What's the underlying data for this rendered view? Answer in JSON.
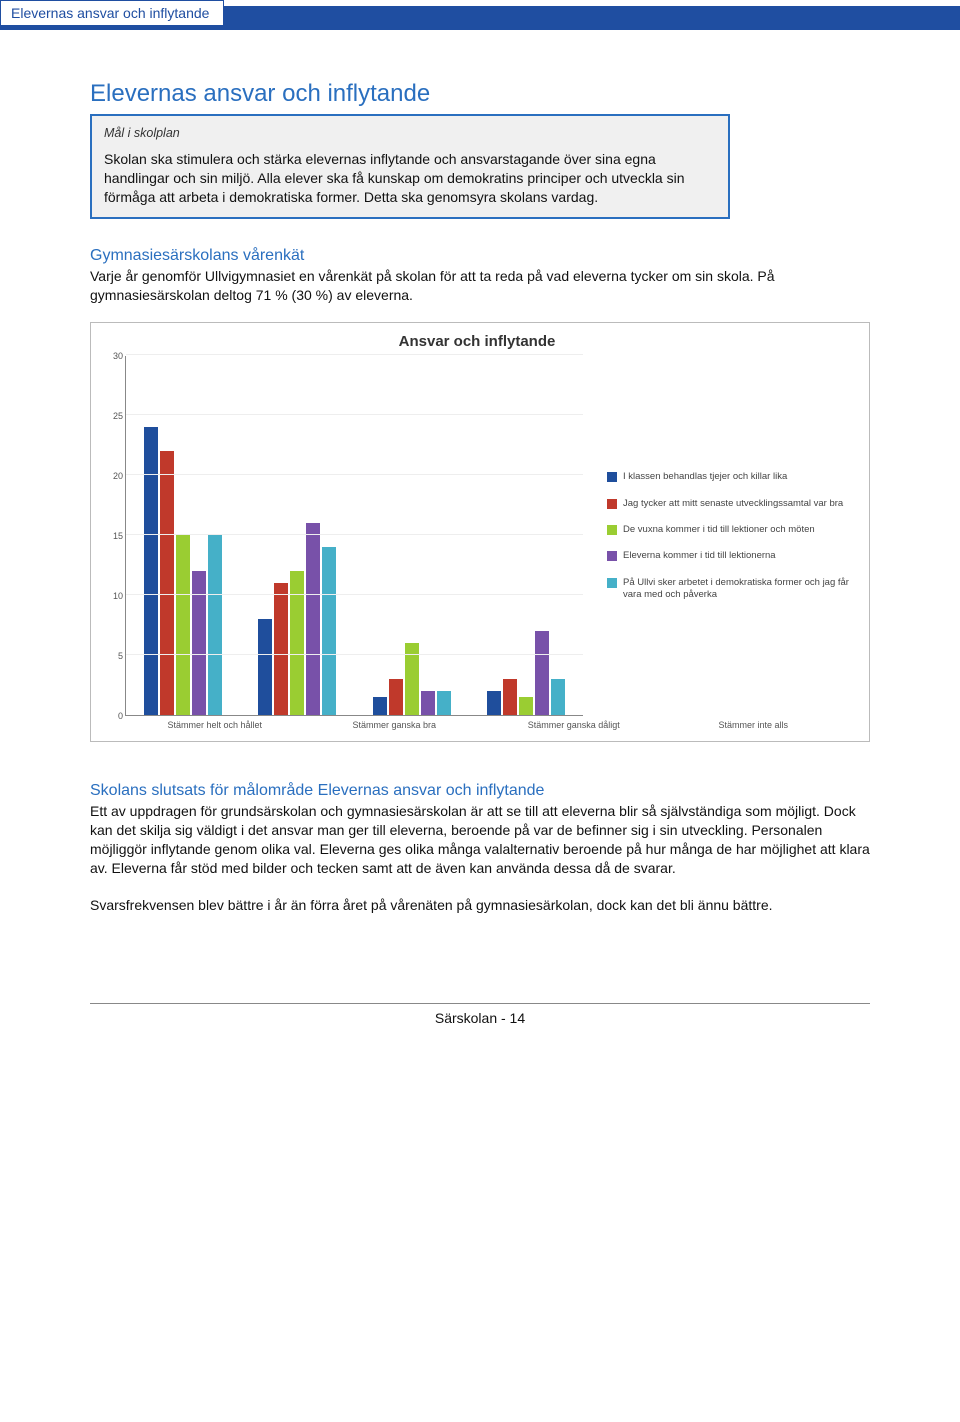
{
  "banner_tab": "Elevernas ansvar och inflytande",
  "section_title": "Elevernas ansvar och inflytande",
  "box_label": "Mål i skolplan",
  "box_text": "Skolan ska stimulera och stärka elevernas inflytande och ansvarstagande över sina egna handlingar och sin miljö. Alla elever ska få kunskap om demokratins principer och utveckla sin förmåga att arbeta i demokratiska former. Detta ska genomsyra skolans vardag.",
  "sub_heading": "Gymnasiesärskolans vårenkät",
  "sub_text": "Varje år genomför Ullvigymnasiet en vårenkät på skolan för att ta reda på vad eleverna tycker om sin skola. På gymnasiesärskolan deltog 71 % (30 %) av eleverna.",
  "chart": {
    "title": "Ansvar och inflytande",
    "ymax": 30,
    "ytick_step": 5,
    "categories": [
      "Stämmer helt och hållet",
      "Stämmer ganska bra",
      "Stämmer ganska dåligt",
      "Stämmer inte alls"
    ],
    "series": [
      {
        "label": "I klassen behandlas tjejer och killar lika",
        "color": "#1f4e9c",
        "values": [
          24,
          8,
          1.5,
          2
        ]
      },
      {
        "label": "Jag tycker att mitt senaste utvecklingssamtal var bra",
        "color": "#c0392b",
        "values": [
          22,
          11,
          3,
          3
        ]
      },
      {
        "label": "De vuxna kommer i tid till lektioner och möten",
        "color": "#9acd32",
        "values": [
          15,
          12,
          6,
          1.5
        ]
      },
      {
        "label": "Eleverna kommer i tid till lektionerna",
        "color": "#7851a9",
        "values": [
          12,
          16,
          2,
          7
        ]
      },
      {
        "label": "På Ullvi sker arbetet i demokratiska former och jag får vara med och påverka",
        "color": "#45b0c8",
        "values": [
          15,
          14,
          2,
          3
        ]
      }
    ]
  },
  "conclusion_heading": "Skolans slutsats för målområde Elevernas ansvar och inflytande",
  "conclusion_p1": "Ett av uppdragen för grundsärskolan och gymnasiesärskolan är att se till att eleverna blir så självständiga som möjligt. Dock kan det skilja sig väldigt i det ansvar man ger till eleverna, beroende på var de befinner sig i sin utveckling. Personalen möjliggör inflytande genom olika val. Eleverna ges olika många valalternativ beroende på hur många de har möjlighet att klara av. Eleverna får stöd med bilder och tecken samt att de även kan använda dessa då de svarar.",
  "conclusion_p2": "Svarsfrekvensen blev bättre i år än förra året på vårenäten på gymnasiesärkolan, dock kan det bli ännu bättre.",
  "footer": "Särskolan - 14"
}
